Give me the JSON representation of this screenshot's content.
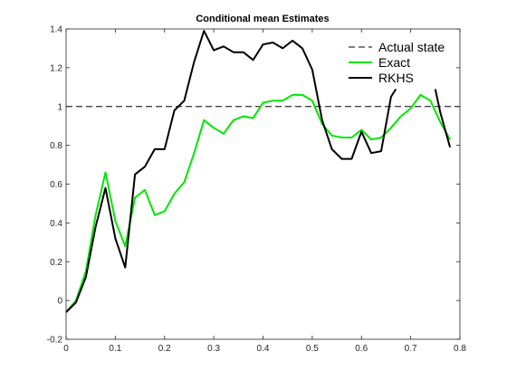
{
  "chart_data": {
    "type": "line",
    "title": "Conditional mean Estimates",
    "xlabel": "",
    "ylabel": "",
    "xlim": [
      0,
      0.8
    ],
    "ylim": [
      -0.2,
      1.4
    ],
    "xticks": [
      0,
      0.1,
      0.2,
      0.3,
      0.4,
      0.5,
      0.6,
      0.7,
      0.8
    ],
    "xtick_labels": [
      "0",
      "0.1",
      "0.2",
      "0.3",
      "0.4",
      "0.5",
      "0.6",
      "0.7",
      "0.8"
    ],
    "yticks": [
      -0.2,
      0,
      0.2,
      0.4,
      0.6,
      0.8,
      1,
      1.2,
      1.4
    ],
    "ytick_labels": [
      "-0.2",
      "0",
      "0.2",
      "0.4",
      "0.6",
      "0.8",
      "1",
      "1.2",
      "1.4"
    ],
    "grid": false,
    "legend_position": "top-right",
    "series": [
      {
        "name": "Actual state",
        "style": "dashed",
        "color": "#000000",
        "x": [
          0,
          0.8
        ],
        "y": [
          1,
          1
        ]
      },
      {
        "name": "Exact",
        "style": "solid",
        "color": "#00e600",
        "x": [
          0,
          0.02,
          0.04,
          0.06,
          0.08,
          0.1,
          0.12,
          0.14,
          0.16,
          0.18,
          0.2,
          0.22,
          0.24,
          0.26,
          0.28,
          0.3,
          0.32,
          0.34,
          0.36,
          0.38,
          0.4,
          0.42,
          0.44,
          0.46,
          0.48,
          0.5,
          0.52,
          0.54,
          0.56,
          0.58,
          0.6,
          0.62,
          0.64,
          0.66,
          0.68,
          0.7,
          0.72,
          0.74,
          0.76,
          0.78
        ],
        "y": [
          -0.06,
          0.0,
          0.15,
          0.44,
          0.66,
          0.41,
          0.28,
          0.53,
          0.57,
          0.44,
          0.46,
          0.55,
          0.61,
          0.76,
          0.93,
          0.89,
          0.86,
          0.93,
          0.95,
          0.94,
          1.02,
          1.03,
          1.03,
          1.06,
          1.06,
          1.03,
          0.91,
          0.85,
          0.84,
          0.84,
          0.88,
          0.83,
          0.84,
          0.89,
          0.95,
          0.99,
          1.06,
          1.03,
          0.92,
          0.83
        ]
      },
      {
        "name": "RKHS",
        "style": "solid",
        "color": "#000000",
        "segments": [
          {
            "x": [
              0,
              0.02,
              0.04,
              0.06,
              0.08,
              0.1,
              0.12,
              0.14,
              0.16,
              0.18,
              0.2,
              0.22,
              0.24,
              0.26,
              0.28,
              0.3,
              0.32,
              0.34,
              0.36,
              0.38,
              0.4,
              0.42,
              0.44,
              0.46,
              0.48,
              0.5,
              0.52,
              0.54,
              0.56,
              0.58,
              0.6,
              0.62,
              0.64,
              0.66,
              0.67
            ],
            "y": [
              -0.06,
              -0.01,
              0.12,
              0.38,
              0.58,
              0.32,
              0.17,
              0.65,
              0.69,
              0.78,
              0.78,
              0.98,
              1.03,
              1.23,
              1.39,
              1.29,
              1.31,
              1.28,
              1.28,
              1.24,
              1.32,
              1.33,
              1.3,
              1.34,
              1.3,
              1.19,
              0.93,
              0.78,
              0.73,
              0.73,
              0.87,
              0.76,
              0.77,
              1.05,
              1.09
            ]
          },
          {
            "x": [
              0.75,
              0.76,
              0.78
            ],
            "y": [
              1.09,
              0.97,
              0.79
            ]
          }
        ]
      }
    ]
  }
}
